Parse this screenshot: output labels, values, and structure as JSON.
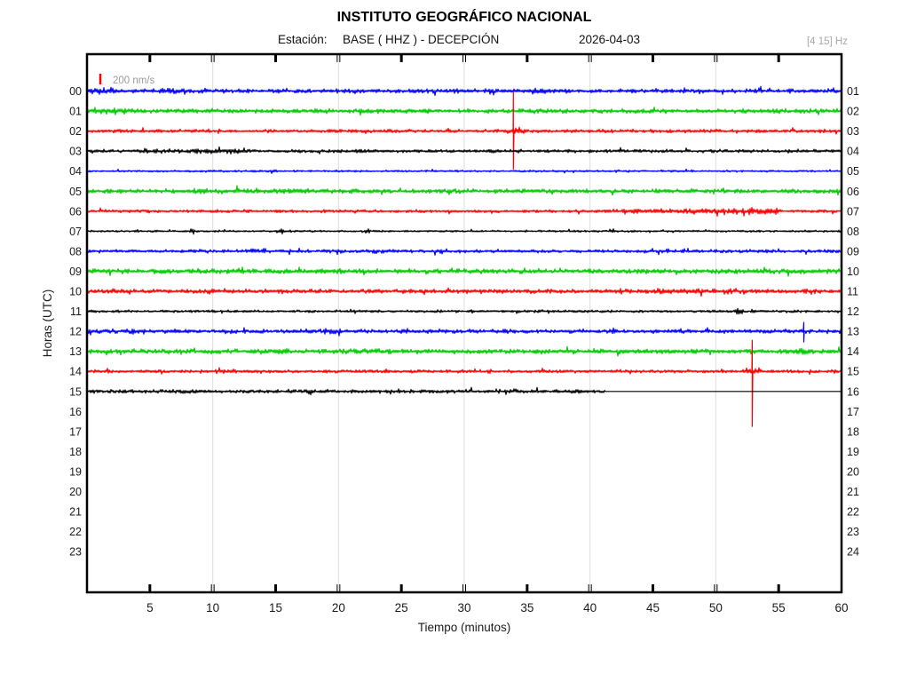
{
  "header": {
    "title": "INSTITUTO GEOGRÁFICO NACIONAL",
    "station_label": "Estación:",
    "station": "BASE ( HHZ ) - DECEPCIÓN",
    "date": "2026-04-03",
    "filter_band": "[4 15] Hz"
  },
  "legend": {
    "label": "200 nm/s",
    "scale_color": "#ff0000"
  },
  "axes": {
    "ylabel": "Horas (UTC)",
    "xlabel": "Tiempo (minutos)",
    "x_ticks": [
      5,
      10,
      15,
      20,
      25,
      30,
      35,
      40,
      45,
      50,
      55,
      60
    ],
    "x_gridlines": [
      10,
      20,
      30,
      40,
      50
    ],
    "left_hour_labels": [
      "00",
      "01",
      "02",
      "03",
      "04",
      "05",
      "06",
      "07",
      "08",
      "09",
      "10",
      "11",
      "12",
      "13",
      "14",
      "15",
      "16",
      "17",
      "18",
      "19",
      "20",
      "21",
      "22",
      "23"
    ],
    "right_hour_labels": [
      "01",
      "02",
      "03",
      "04",
      "05",
      "06",
      "07",
      "08",
      "09",
      "10",
      "11",
      "12",
      "13",
      "14",
      "15",
      "16",
      "17",
      "18",
      "19",
      "20",
      "21",
      "22",
      "23",
      "24"
    ]
  },
  "colors": {
    "palette": {
      "blue": "#0000ff",
      "green": "#00cc00",
      "red": "#ff0000",
      "black": "#000000"
    },
    "gridline": "#dcdcdc",
    "border": "#000000"
  },
  "chart_data": {
    "type": "line",
    "subtype": "helicorder-seismogram",
    "x_range_minutes": [
      0,
      60
    ],
    "minutes_per_row": 60,
    "rows_with_data": 16,
    "total_hour_rows": 24,
    "color_cycle": [
      "blue",
      "green",
      "red",
      "black"
    ],
    "rows": [
      {
        "hour": "00",
        "color": "blue",
        "amp": 2.8,
        "bursts": [
          [
            0,
            2.3,
            5.5
          ],
          [
            5.8,
            7.6,
            4.5
          ],
          [
            35.4,
            36.6,
            4
          ]
        ]
      },
      {
        "hour": "01",
        "color": "green",
        "amp": 3.0,
        "bursts": [
          [
            0,
            3,
            4.2
          ]
        ]
      },
      {
        "hour": "02",
        "color": "red",
        "amp": 2.2,
        "bursts": [
          [
            33.2,
            34.8,
            5
          ]
        ],
        "spikes": [
          [
            33.9,
            44,
            43
          ]
        ]
      },
      {
        "hour": "03",
        "color": "black",
        "amp": 2.2,
        "bursts": [
          [
            4,
            13,
            3.4
          ]
        ]
      },
      {
        "hour": "04",
        "color": "blue",
        "amp": 1.3,
        "bursts": [
          [
            14.6,
            15.1,
            3.5
          ]
        ]
      },
      {
        "hour": "05",
        "color": "green",
        "amp": 2.8,
        "bursts": [
          [
            8,
            18,
            3.6
          ]
        ]
      },
      {
        "hour": "06",
        "color": "red",
        "amp": 2.0,
        "bursts": [
          [
            41,
            47,
            3
          ],
          [
            47,
            52,
            3.8
          ],
          [
            52,
            55.2,
            5.5
          ]
        ]
      },
      {
        "hour": "07",
        "color": "black",
        "amp": 1.3,
        "bursts": [
          [
            8.2,
            8.6,
            4
          ],
          [
            15.3,
            15.7,
            4
          ],
          [
            22,
            22.5,
            3.5
          ],
          [
            41.5,
            42,
            3.5
          ]
        ]
      },
      {
        "hour": "08",
        "color": "blue",
        "amp": 2.3,
        "bursts": [
          [
            13,
            14.2,
            3.6
          ],
          [
            27.8,
            29,
            3.6
          ]
        ]
      },
      {
        "hour": "09",
        "color": "green",
        "amp": 3.2,
        "bursts": []
      },
      {
        "hour": "10",
        "color": "red",
        "amp": 2.8,
        "bursts": [
          [
            45,
            52,
            3.6
          ]
        ]
      },
      {
        "hour": "11",
        "color": "black",
        "amp": 1.8,
        "bursts": [
          [
            51.4,
            52.2,
            4
          ]
        ]
      },
      {
        "hour": "12",
        "color": "blue",
        "amp": 2.8,
        "bursts": [
          [
            18.8,
            20.2,
            4.5
          ]
        ],
        "spikes": [
          [
            57,
            10,
            12
          ]
        ]
      },
      {
        "hour": "13",
        "color": "green",
        "amp": 3.2,
        "bursts": [
          [
            55.8,
            57.6,
            4.5
          ]
        ]
      },
      {
        "hour": "14",
        "color": "red",
        "amp": 2.2,
        "bursts": [
          [
            9,
            12,
            3
          ],
          [
            52.4,
            53.6,
            5
          ]
        ],
        "spikes": [
          [
            52.9,
            35,
            62
          ]
        ]
      },
      {
        "hour": "15",
        "color": "black",
        "amp": 2.4,
        "bursts": [],
        "end_minute": 41.2
      }
    ],
    "notable_events": [
      {
        "hour": "02",
        "minute": 33.9,
        "description": "large spike on red trace"
      },
      {
        "hour": "06",
        "minute_range": [
          52,
          55
        ],
        "description": "amplitude burst on red trace"
      },
      {
        "hour": "12",
        "minute": 57,
        "description": "small spike on blue trace"
      },
      {
        "hour": "14",
        "minute": 52.9,
        "description": "large spike on red trace"
      },
      {
        "hour": "15",
        "minute": 41.2,
        "description": "recording ends, flat baseline afterwards"
      }
    ]
  }
}
